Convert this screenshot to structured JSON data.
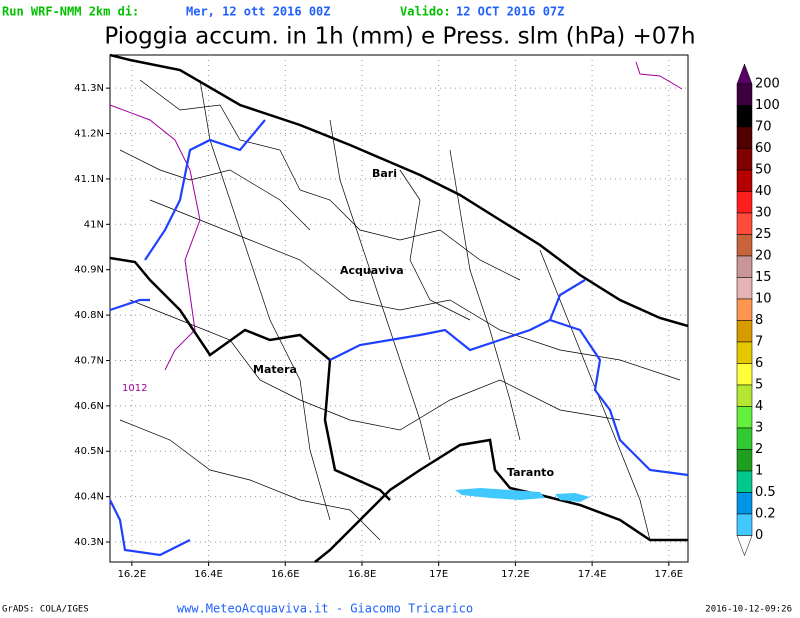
{
  "header": {
    "run_label": "Run WRF-NMM 2km di:",
    "run_date": "Mer, 12 ott 2016 00Z",
    "valid_label": "Valido:",
    "valid_date": "12 OCT 2016 07Z",
    "title": "Pioggia accum. in 1h (mm) e Press. slm (hPa) +07h"
  },
  "axes": {
    "xlim": [
      16.143,
      17.65
    ],
    "ylim": [
      40.256,
      41.373
    ],
    "xticks": [
      {
        "value": 16.2,
        "label": "16.2E"
      },
      {
        "value": 16.4,
        "label": "16.4E"
      },
      {
        "value": 16.6,
        "label": "16.6E"
      },
      {
        "value": 16.8,
        "label": "16.8E"
      },
      {
        "value": 17.0,
        "label": "17E"
      },
      {
        "value": 17.2,
        "label": "17.2E"
      },
      {
        "value": 17.4,
        "label": "17.4E"
      },
      {
        "value": 17.6,
        "label": "17.6E"
      }
    ],
    "yticks": [
      {
        "value": 40.3,
        "label": "40.3N"
      },
      {
        "value": 40.4,
        "label": "40.4N"
      },
      {
        "value": 40.5,
        "label": "40.5N"
      },
      {
        "value": 40.6,
        "label": "40.6N"
      },
      {
        "value": 40.7,
        "label": "40.7N"
      },
      {
        "value": 40.8,
        "label": "40.8N"
      },
      {
        "value": 40.9,
        "label": "40.9N"
      },
      {
        "value": 41.0,
        "label": "41N"
      },
      {
        "value": 41.1,
        "label": "41.1N"
      },
      {
        "value": 41.2,
        "label": "41.2N"
      },
      {
        "value": 41.3,
        "label": "41.3N"
      }
    ]
  },
  "colorbar": [
    {
      "label": "200",
      "color": "#5a0064"
    },
    {
      "label": "100",
      "color": "#3c0040"
    },
    {
      "label": "70",
      "color": "#000000"
    },
    {
      "label": "60",
      "color": "#500000"
    },
    {
      "label": "50",
      "color": "#800000"
    },
    {
      "label": "40",
      "color": "#b40000"
    },
    {
      "label": "30",
      "color": "#ff1e1e"
    },
    {
      "label": "25",
      "color": "#ff4b3c"
    },
    {
      "label": "20",
      "color": "#c8643c"
    },
    {
      "label": "15",
      "color": "#c89696"
    },
    {
      "label": "10",
      "color": "#e6b4b4"
    },
    {
      "label": "8",
      "color": "#ff9650"
    },
    {
      "label": "7",
      "color": "#d79b00"
    },
    {
      "label": "6",
      "color": "#e6c800"
    },
    {
      "label": "5",
      "color": "#ffff3c"
    },
    {
      "label": "4",
      "color": "#b4e632"
    },
    {
      "label": "3",
      "color": "#64f03c"
    },
    {
      "label": "2",
      "color": "#32c832"
    },
    {
      "label": "1",
      "color": "#1ea01e"
    },
    {
      "label": "0.5",
      "color": "#00c88c"
    },
    {
      "label": "0.2",
      "color": "#0096e6"
    },
    {
      "label": "0",
      "color": "#40c8ff"
    }
  ],
  "places": [
    "Bari",
    "Acquaviva",
    "Matera",
    "Taranto"
  ],
  "isobar_label": "1012",
  "footer": {
    "left": "GrADS: COLA/IGES",
    "center": "www.MeteoAcquaviva.it  -  Giacomo Tricarico",
    "right": "2016-10-12-09:26"
  }
}
